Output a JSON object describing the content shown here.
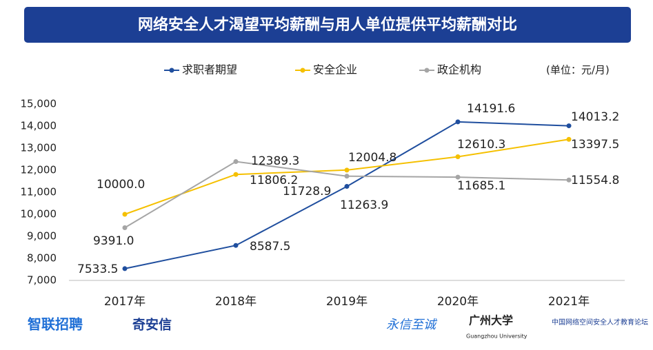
{
  "chart_data": {
    "type": "line",
    "title": "网络安全人才渴望平均薪酬与用人单位提供平均薪酬对比",
    "unit_note": "(单位：元/月)",
    "categories": [
      "2017年",
      "2018年",
      "2019年",
      "2020年",
      "2021年"
    ],
    "series": [
      {
        "name": "求职者期望",
        "color": "#1f4e9e",
        "values": [
          7533.5,
          8587.5,
          11263.9,
          14191.6,
          14013.2
        ],
        "value_labels": [
          "7533.5",
          "8587.5",
          "11263.9",
          "14191.6",
          "14013.2"
        ]
      },
      {
        "name": "安全企业",
        "color": "#f5c000",
        "values": [
          10000.0,
          11806.2,
          12004.8,
          12610.3,
          13397.5
        ],
        "value_labels": [
          "10000.0",
          "11806.2",
          "12004.8",
          "12610.3",
          "13397.5"
        ]
      },
      {
        "name": "政企机构",
        "color": "#a5a5a5",
        "values": [
          9391.0,
          12389.3,
          11728.9,
          11685.1,
          11554.8
        ],
        "value_labels": [
          "9391.0",
          "12389.3",
          "11728.9",
          "11685.1",
          "11554.8"
        ]
      }
    ],
    "ylim": [
      7000,
      15000
    ],
    "yticks": [
      {
        "value": 7000,
        "label": "7,000"
      },
      {
        "value": 8000,
        "label": "8,000"
      },
      {
        "value": 9000,
        "label": "9,000"
      },
      {
        "value": 10000,
        "label": "10,000"
      },
      {
        "value": 11000,
        "label": "11,000"
      },
      {
        "value": 12000,
        "label": "12,000"
      },
      {
        "value": 13000,
        "label": "13,000"
      },
      {
        "value": 14000,
        "label": "14,000"
      },
      {
        "value": 15000,
        "label": "15,000"
      }
    ],
    "grid": false,
    "legend": "top"
  },
  "footer_logos": [
    "智联招聘",
    "奇安信",
    "永信至诚",
    "广州大学",
    "Guangzhou University",
    "中国网络空间安全人才教育论坛"
  ]
}
